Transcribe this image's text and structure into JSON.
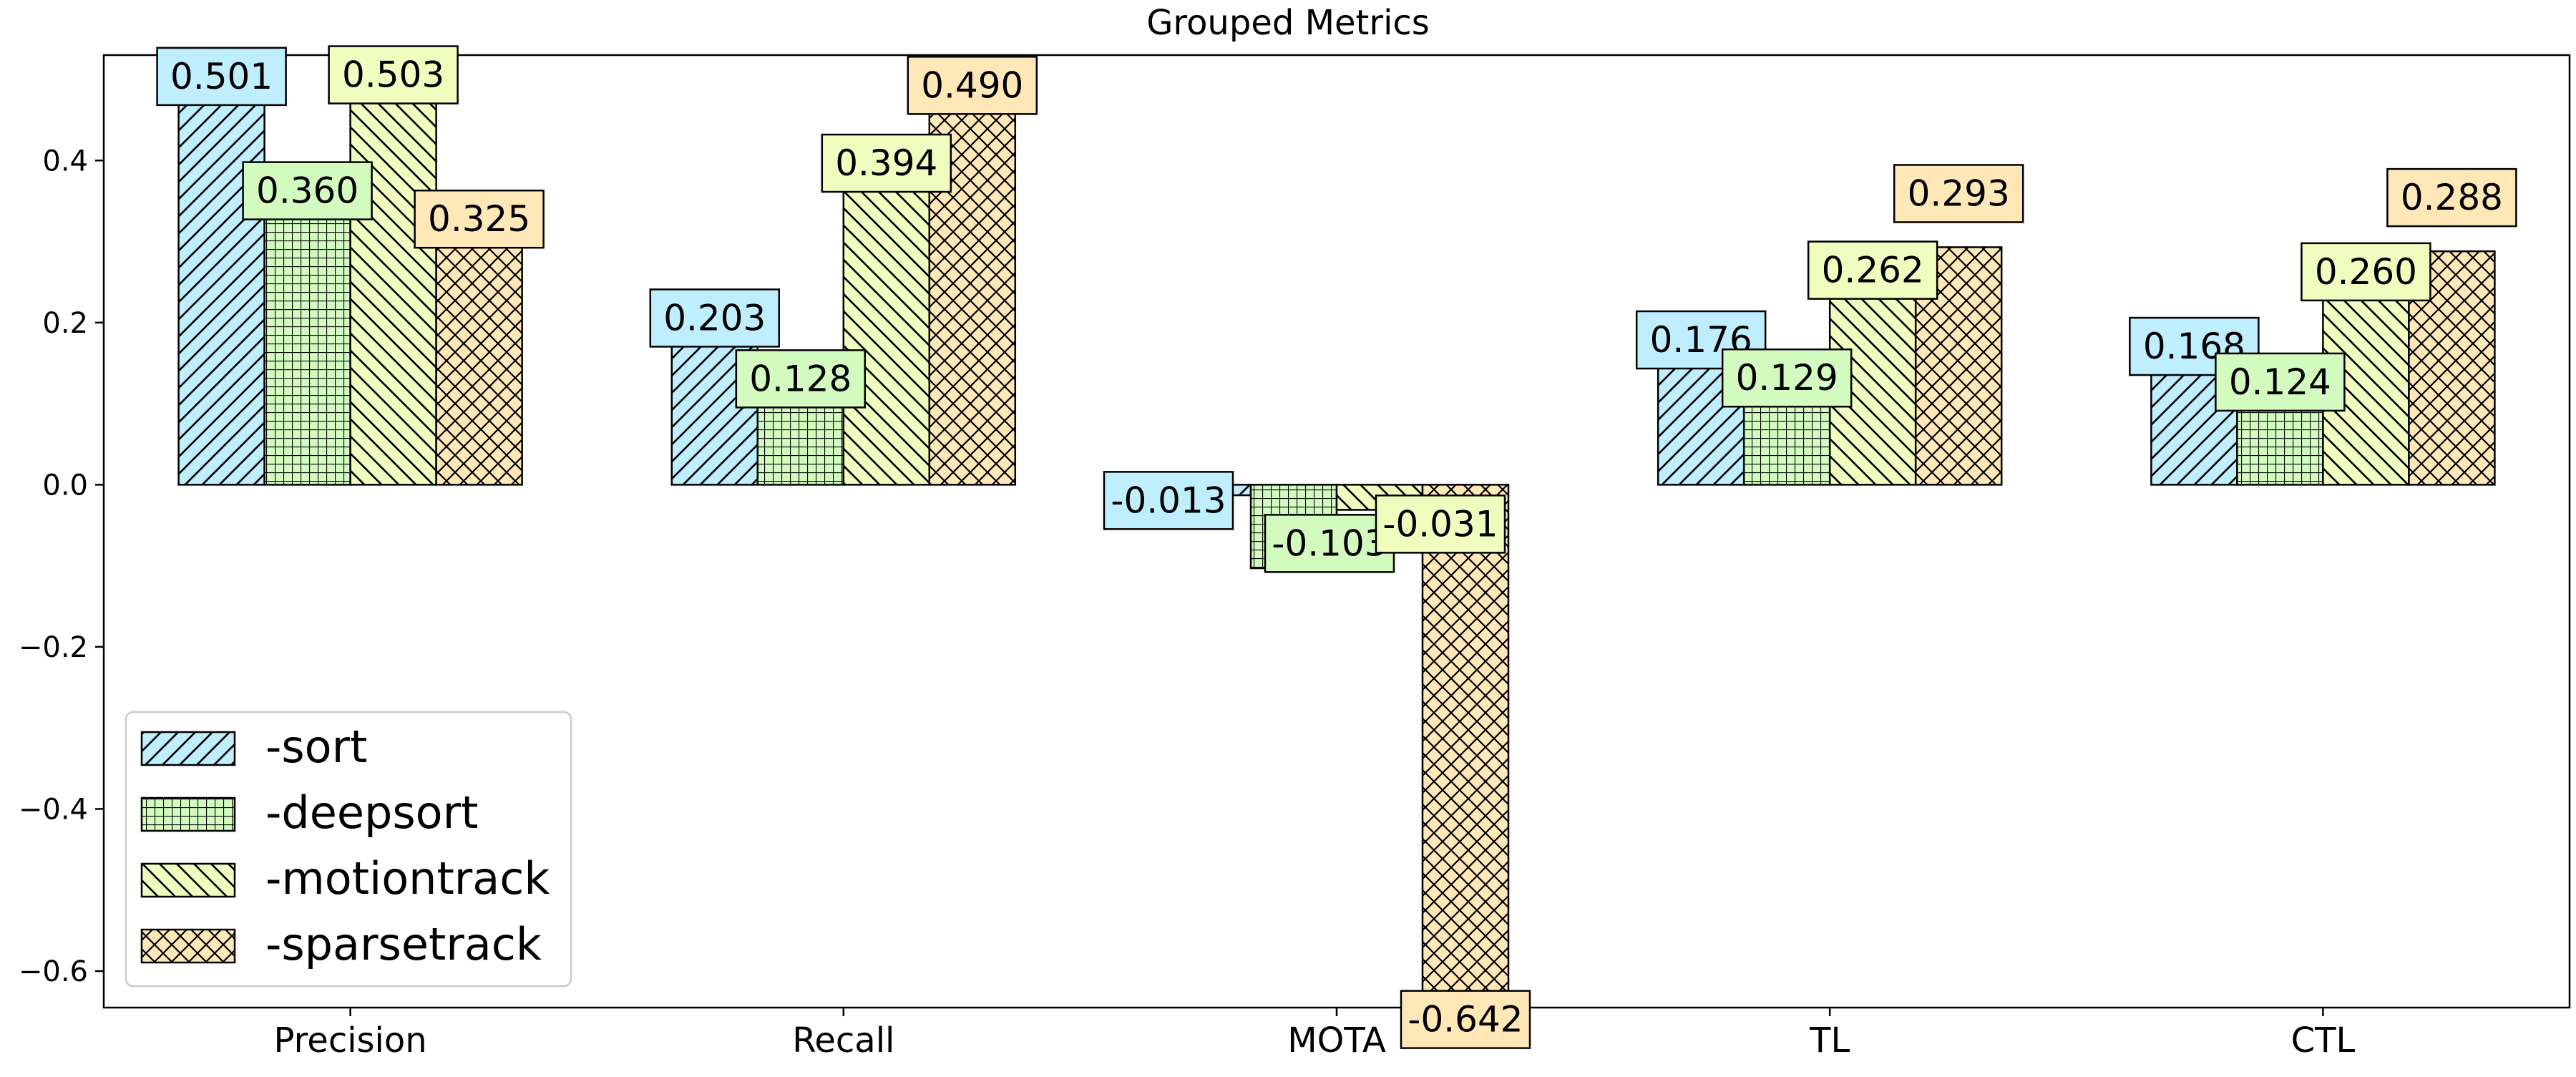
{
  "chart_data": {
    "type": "bar",
    "title": "Grouped Metrics",
    "xlabel": "",
    "ylabel": "",
    "categories": [
      "Precision",
      "Recall",
      "MOTA",
      "TL",
      "CTL"
    ],
    "ylim": [
      -0.645,
      0.53
    ],
    "yticks": [
      -0.6,
      -0.4,
      -0.2,
      0.0,
      0.2,
      0.4
    ],
    "ytick_labels": [
      "−0.6",
      "−0.4",
      "−0.2",
      "0.0",
      "0.2",
      "0.4"
    ],
    "grid": false,
    "legend_position": "lower-left",
    "series": [
      {
        "name": "-sort",
        "color": "#bfeeff",
        "hatch": "diagonal-forward",
        "values": [
          0.501,
          0.203,
          -0.013,
          0.176,
          0.168
        ],
        "labels": [
          "0.501",
          "0.203",
          "-0.013",
          "0.176",
          "0.168"
        ]
      },
      {
        "name": "-deepsort",
        "color": "#d3fbc0",
        "hatch": "grid",
        "values": [
          0.36,
          0.128,
          -0.103,
          0.129,
          0.124
        ],
        "labels": [
          "0.360",
          "0.128",
          "-0.103",
          "0.129",
          "0.124"
        ]
      },
      {
        "name": "-motiontrack",
        "color": "#f1fdbe",
        "hatch": "diagonal-backward",
        "values": [
          0.503,
          0.394,
          -0.031,
          0.262,
          0.26
        ],
        "labels": [
          "0.503",
          "0.394",
          "-0.031",
          "0.262",
          "0.260"
        ]
      },
      {
        "name": "-sparsetrack",
        "color": "#ffe8b8",
        "hatch": "crosshatch",
        "values": [
          0.325,
          0.49,
          -0.642,
          0.293,
          0.288
        ],
        "labels": [
          "0.325",
          "0.490",
          "-0.642",
          "0.293",
          "0.288"
        ]
      }
    ]
  }
}
